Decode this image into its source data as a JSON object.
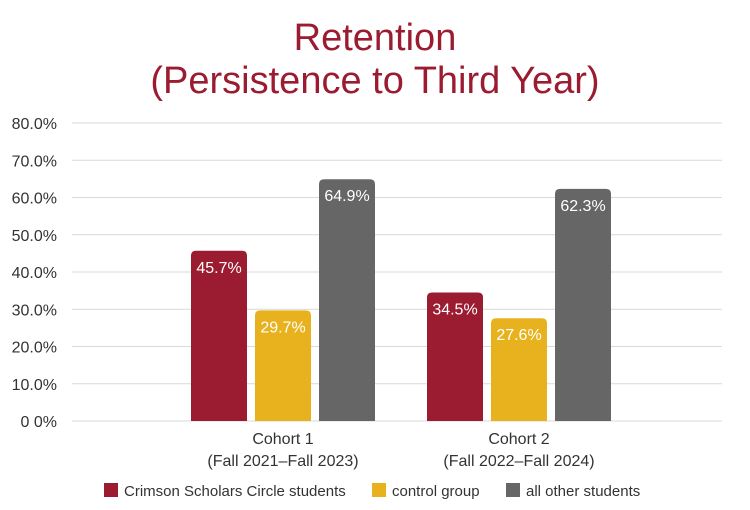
{
  "chart_data": {
    "type": "bar",
    "title_lines": [
      "Retention",
      "(Persistence to Third Year)"
    ],
    "categories": [
      [
        "Cohort 1",
        "(Fall 2021–Fall 2023)"
      ],
      [
        "Cohort 2",
        "(Fall 2022–Fall 2024)"
      ]
    ],
    "series": [
      {
        "name": "Crimson Scholars Circle students",
        "color": "#9b1b30",
        "values": [
          45.7,
          34.5
        ],
        "labels": [
          "45.7%",
          "34.5%"
        ]
      },
      {
        "name": "control group",
        "color": "#e8b21f",
        "values": [
          29.7,
          27.6
        ],
        "labels": [
          "29.7%",
          "27.6%"
        ]
      },
      {
        "name": "all other students",
        "color": "#666666",
        "values": [
          64.9,
          62.3
        ],
        "labels": [
          "64.9%",
          "62.3%"
        ]
      }
    ],
    "yticks": [
      "0 0%",
      "10.0%",
      "20.0%",
      "30.0%",
      "40.0%",
      "50.0%",
      "60.0%",
      "70.0%",
      "80.0%"
    ],
    "ylim": [
      0,
      80
    ],
    "grid": true,
    "legend_position": "bottom"
  }
}
